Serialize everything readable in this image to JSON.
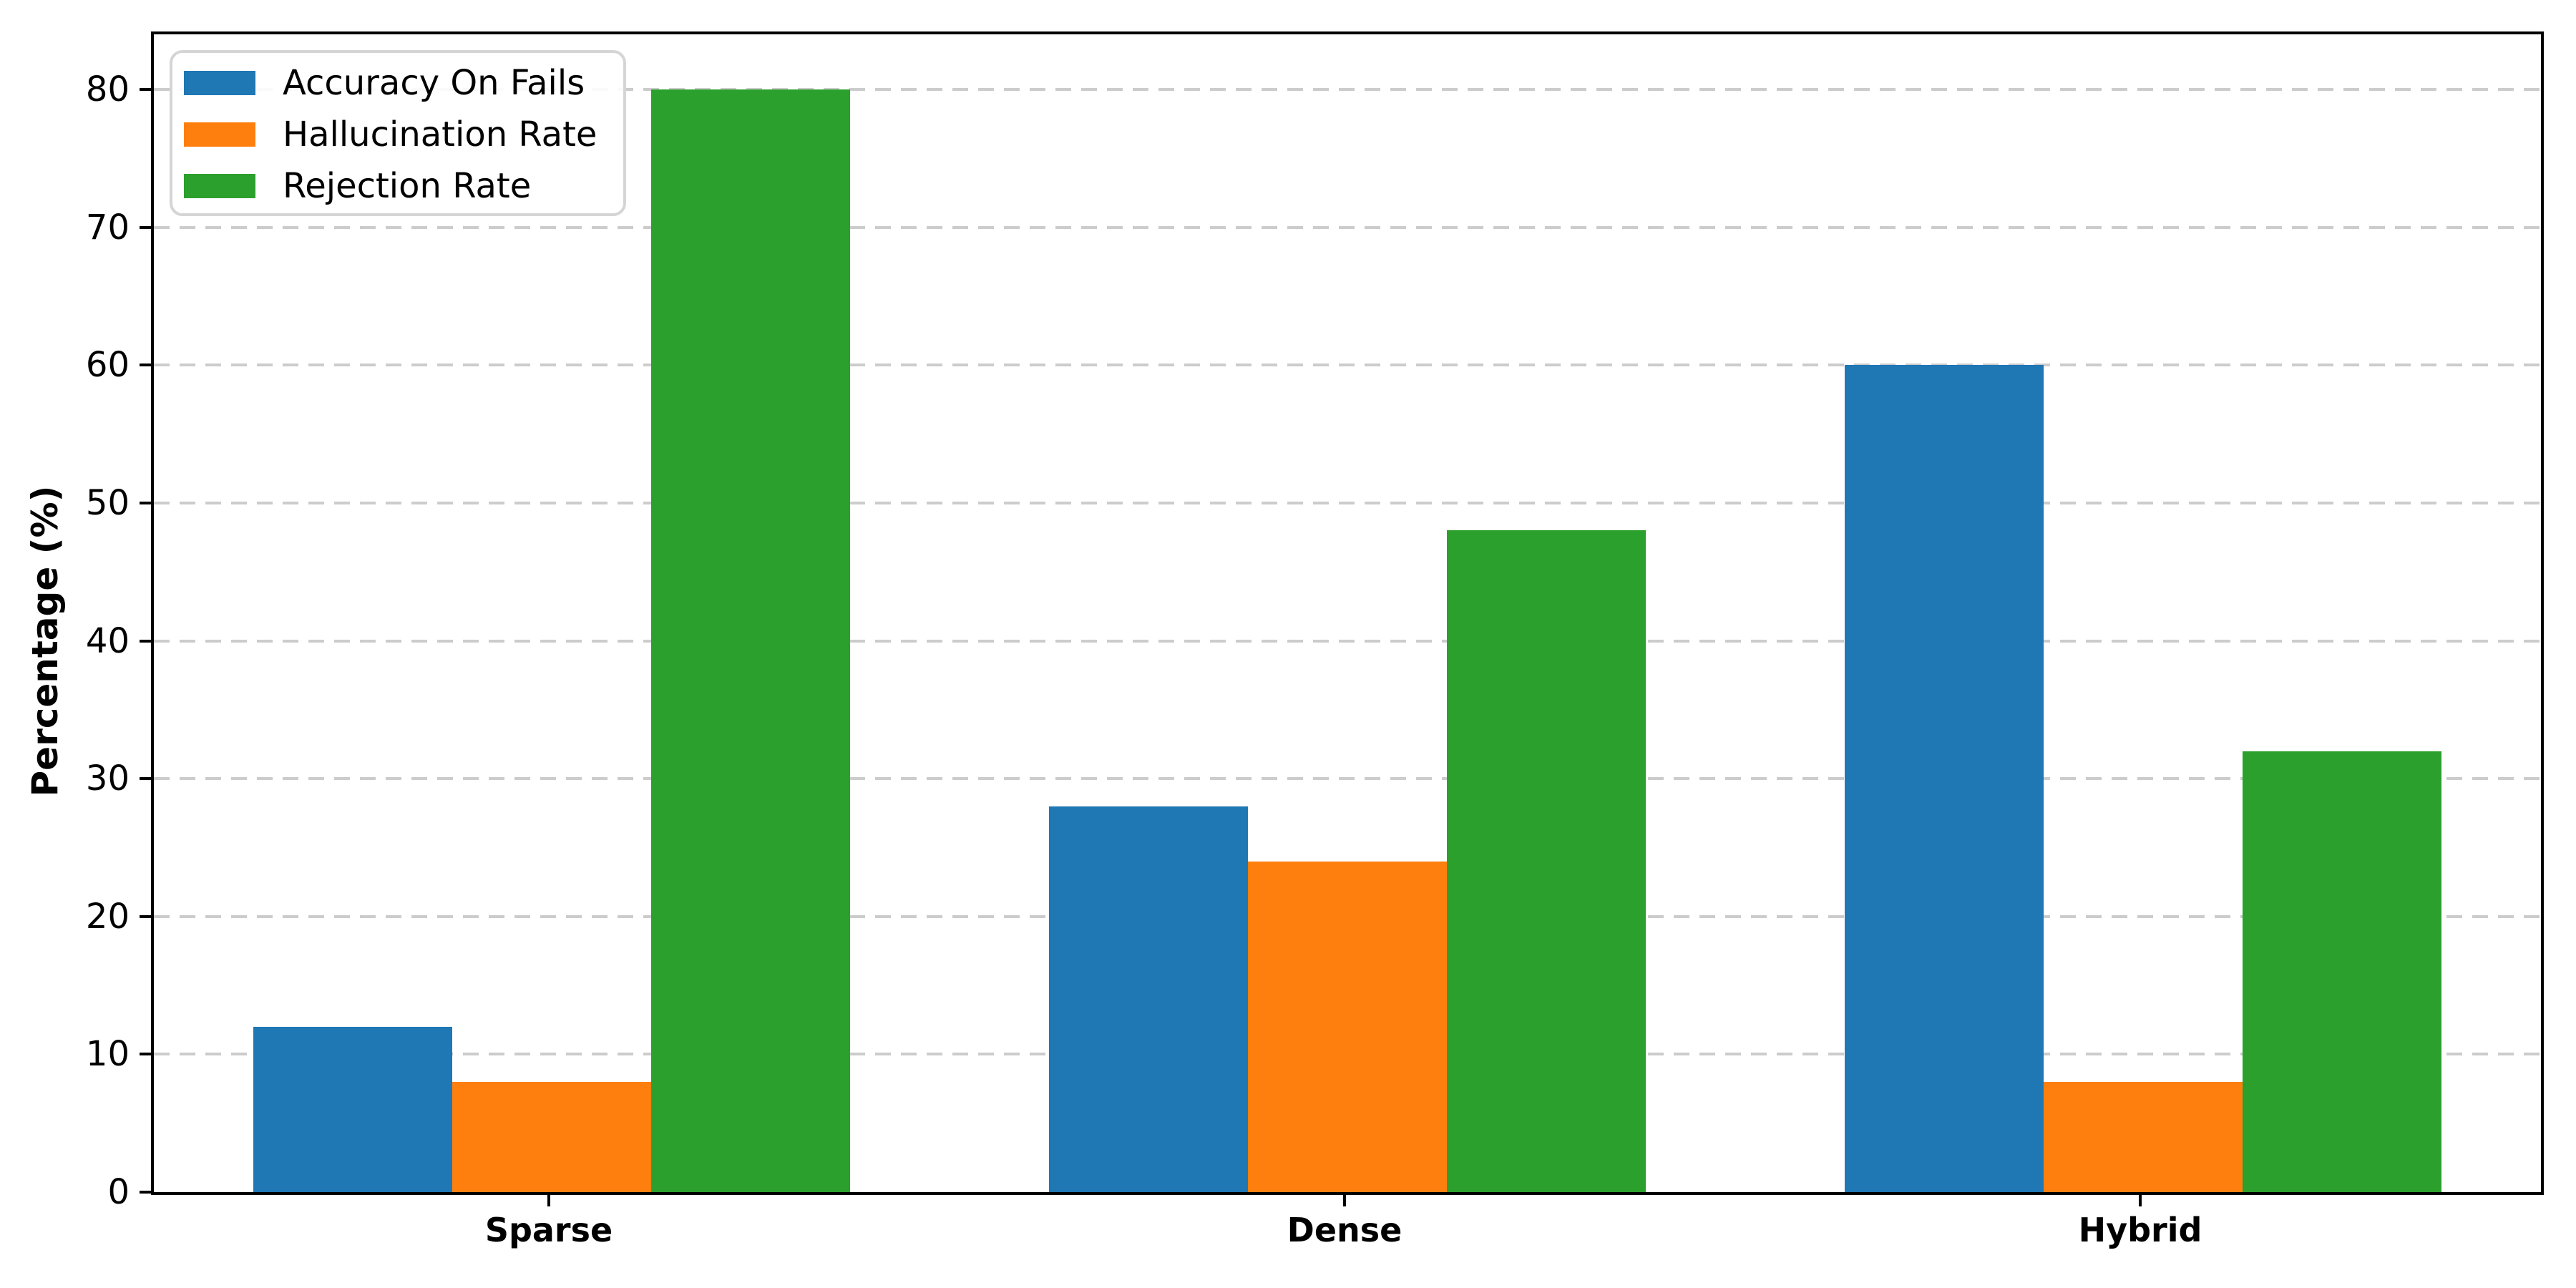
{
  "chart_data": {
    "type": "bar",
    "title": "",
    "categories": [
      "Sparse",
      "Dense",
      "Hybrid"
    ],
    "series": [
      {
        "name": "Accuracy On Fails",
        "color": "#1f77b4",
        "values": [
          12,
          28,
          60
        ]
      },
      {
        "name": "Hallucination Rate",
        "color": "#ff7f0e",
        "values": [
          8,
          24,
          8
        ]
      },
      {
        "name": "Rejection Rate",
        "color": "#2ca02c",
        "values": [
          80,
          48,
          32
        ]
      }
    ],
    "xlabel": "",
    "ylabel": "Percentage (%)",
    "yticks": [
      0,
      10,
      20,
      30,
      40,
      50,
      60,
      70,
      80
    ],
    "ylim": [
      0,
      84
    ],
    "bar_width_fraction": 0.25,
    "grid": "horizontal-dashed",
    "grid_color": "#cccccc",
    "legend_position": "upper-left",
    "spine_color": "#000000",
    "background": "#ffffff"
  }
}
